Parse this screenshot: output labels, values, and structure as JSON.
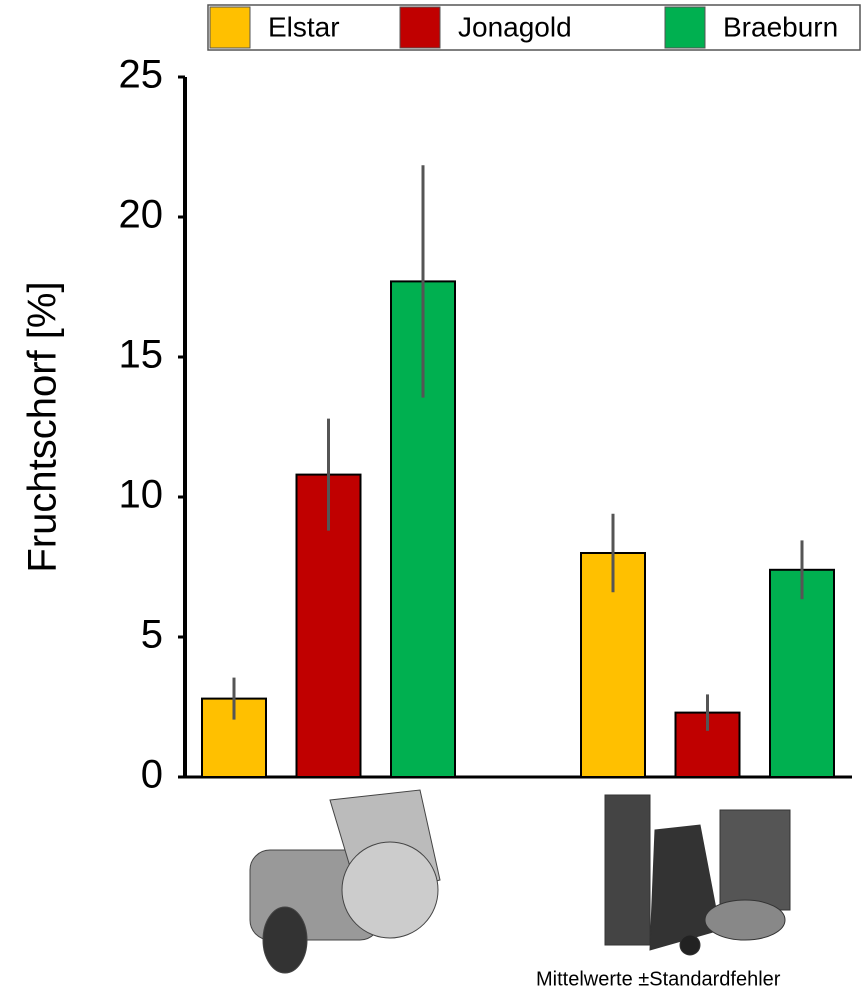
{
  "chart_data": {
    "type": "bar",
    "y_label": "Fruchtschorf [%]",
    "footnote": "Mittelwerte ±Standardfehler",
    "categories": [
      null,
      null
    ],
    "series": [
      {
        "name": "Elstar",
        "color": "#ffc000",
        "values": [
          2.8,
          8.0
        ],
        "errors": [
          0.75,
          1.4
        ]
      },
      {
        "name": "Jonagold",
        "color": "#c00000",
        "values": [
          10.8,
          2.3
        ],
        "errors": [
          2.0,
          0.65
        ]
      },
      {
        "name": "Braeburn",
        "color": "#00b050",
        "values": [
          17.7,
          7.4
        ],
        "errors": [
          4.15,
          1.05
        ]
      }
    ],
    "ylim": [
      0,
      25
    ],
    "yticks": [
      0,
      5,
      10,
      15,
      20,
      25
    ],
    "legend": "top"
  }
}
